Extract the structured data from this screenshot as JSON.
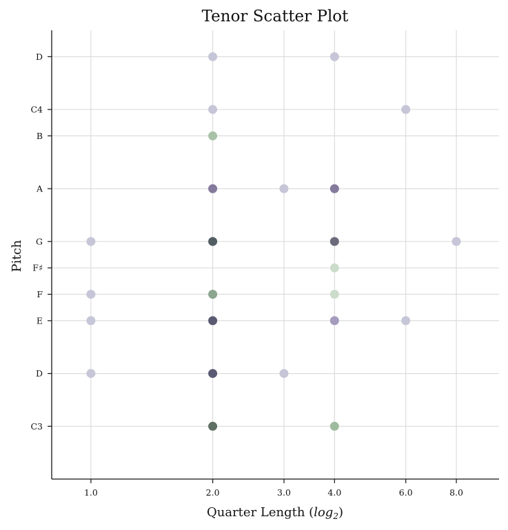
{
  "chart_data": {
    "type": "scatter",
    "title": "Tenor Scatter Plot",
    "xlabel": "Quarter Length (",
    "xlabel_math": "log",
    "xlabel_sub": "2",
    "xlabel_end": ")",
    "ylabel": "Pitch",
    "x_scale": "log2",
    "xlim": [
      0.8,
      10.2
    ],
    "x_ticks": [
      1,
      2,
      3,
      4,
      6,
      8
    ],
    "x_tick_labels": [
      "1.0",
      "2.0",
      "3.0",
      "4.0",
      "6.0",
      "8.0"
    ],
    "ylim": [
      46,
      63
    ],
    "y_ticks": [
      {
        "value": 48,
        "label": "C3"
      },
      {
        "value": 50,
        "label": "D"
      },
      {
        "value": 52,
        "label": "E"
      },
      {
        "value": 53,
        "label": "F"
      },
      {
        "value": 54,
        "label": "F♯"
      },
      {
        "value": 55,
        "label": "G"
      },
      {
        "value": 57,
        "label": "A"
      },
      {
        "value": 59,
        "label": "B"
      },
      {
        "value": 60,
        "label": "C4"
      },
      {
        "value": 62,
        "label": "D"
      }
    ],
    "grid": true,
    "points": [
      {
        "x": 2,
        "y": 62,
        "color": "#c6c6d8"
      },
      {
        "x": 4,
        "y": 62,
        "color": "#c6c6d8"
      },
      {
        "x": 2,
        "y": 60,
        "color": "#c6c6d8"
      },
      {
        "x": 6,
        "y": 60,
        "color": "#c6c6d8"
      },
      {
        "x": 2,
        "y": 59,
        "color": "#a8c2a8"
      },
      {
        "x": 2,
        "y": 57,
        "color": "#857a9c"
      },
      {
        "x": 3,
        "y": 57,
        "color": "#c6c6d8"
      },
      {
        "x": 4,
        "y": 57,
        "color": "#857a9c"
      },
      {
        "x": 1,
        "y": 55,
        "color": "#c6c6d8"
      },
      {
        "x": 2,
        "y": 55,
        "color": "#525e63"
      },
      {
        "x": 4,
        "y": 55,
        "color": "#6b6b7c"
      },
      {
        "x": 8,
        "y": 55,
        "color": "#c6c6d8"
      },
      {
        "x": 4,
        "y": 54,
        "color": "#cbdccb"
      },
      {
        "x": 1,
        "y": 53,
        "color": "#c6c6d8"
      },
      {
        "x": 2,
        "y": 53,
        "color": "#8ca58f"
      },
      {
        "x": 4,
        "y": 53,
        "color": "#cbdccb"
      },
      {
        "x": 1,
        "y": 52,
        "color": "#c6c6d8"
      },
      {
        "x": 2,
        "y": 52,
        "color": "#5a5a72"
      },
      {
        "x": 4,
        "y": 52,
        "color": "#a59cbd"
      },
      {
        "x": 6,
        "y": 52,
        "color": "#c6c6d8"
      },
      {
        "x": 1,
        "y": 50,
        "color": "#c6c6d8"
      },
      {
        "x": 2,
        "y": 50,
        "color": "#5a5a74"
      },
      {
        "x": 3,
        "y": 50,
        "color": "#c6c6d8"
      },
      {
        "x": 2,
        "y": 48,
        "color": "#5f6f64"
      },
      {
        "x": 4,
        "y": 48,
        "color": "#9fbb9f"
      }
    ]
  }
}
